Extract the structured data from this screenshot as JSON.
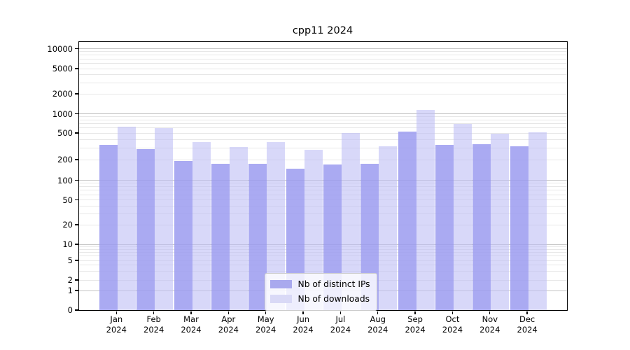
{
  "title": "cpp11 2024",
  "chart_data": {
    "type": "bar",
    "title": "cpp11 2024",
    "categories": [
      "Jan",
      "Feb",
      "Mar",
      "Apr",
      "May",
      "Jun",
      "Jul",
      "Aug",
      "Sep",
      "Oct",
      "Nov",
      "Dec"
    ],
    "category_year": "2024",
    "series": [
      {
        "name": "Nb of distinct IPs",
        "color": "#a9a9ee",
        "fill": "rgba(155,155,240,0.85)",
        "values": [
          330,
          285,
          187,
          170,
          172,
          145,
          168,
          172,
          515,
          330,
          335,
          315
        ]
      },
      {
        "name": "Nb of downloads",
        "color": "#d9d9f6",
        "fill": "rgba(190,190,245,0.6)",
        "values": [
          620,
          590,
          365,
          308,
          365,
          280,
          500,
          315,
          1120,
          690,
          480,
          510
        ]
      }
    ],
    "yscale": "symlog",
    "ylim": [
      0,
      10000
    ],
    "yticks": [
      0,
      1,
      2,
      5,
      10,
      20,
      50,
      100,
      200,
      500,
      1000,
      2000,
      5000,
      10000
    ],
    "decade_ticks": [
      1,
      10,
      100,
      1000,
      10000
    ],
    "minor_gridlines": [
      3,
      4,
      6,
      7,
      8,
      9,
      30,
      40,
      60,
      70,
      80,
      90,
      300,
      400,
      600,
      700,
      800,
      900,
      3000,
      4000,
      6000,
      7000,
      8000,
      9000
    ],
    "grid": true,
    "legend_position": "lower center"
  },
  "colors": {
    "axis": "#000000",
    "grid_major": "#c4c4c4",
    "grid_minor": "#e7e7e7",
    "background": "#ffffff"
  }
}
